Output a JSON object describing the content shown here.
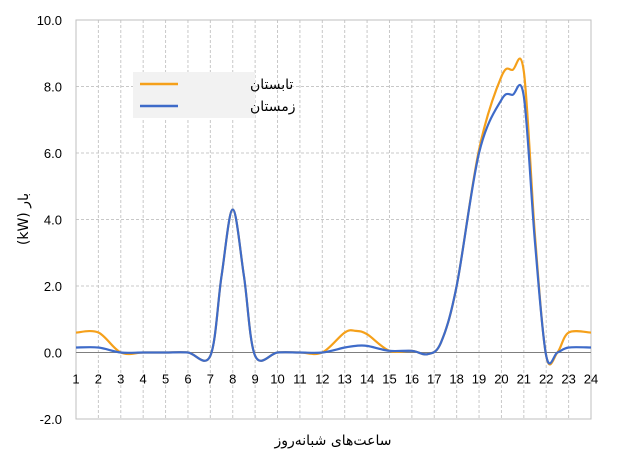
{
  "chart_data": {
    "type": "line",
    "xlabel": "ساعت‌های شبانه‌روز",
    "ylabel": "بار (kW)",
    "x": [
      1,
      2,
      3,
      4,
      5,
      6,
      7,
      8,
      9,
      10,
      11,
      12,
      13,
      14,
      15,
      16,
      17,
      18,
      19,
      20,
      21,
      22,
      23,
      24
    ],
    "xlim": [
      1,
      24
    ],
    "ylim": [
      -2.0,
      10.0
    ],
    "yticks": [
      "-2.0",
      "0.0",
      "2.0",
      "4.0",
      "6.0",
      "8.0",
      "10.0"
    ],
    "grid": true,
    "legend_position": "top-left",
    "series": [
      {
        "name": "تابستان",
        "color": "#F5A01A",
        "x": [
          1,
          2,
          3,
          4,
          5,
          6,
          7,
          7.5,
          8,
          8.5,
          9,
          10,
          11,
          12,
          13,
          13.5,
          14,
          15,
          16,
          16.7,
          17.3,
          18,
          19,
          20,
          20.5,
          21,
          21.5,
          22,
          22.5,
          23,
          24
        ],
        "values": [
          0.6,
          0.6,
          0.0,
          0.0,
          0.0,
          0.0,
          -0.1,
          2.3,
          4.3,
          2.3,
          -0.1,
          0.0,
          0.0,
          0.0,
          0.6,
          0.65,
          0.55,
          0.05,
          0.05,
          -0.05,
          0.3,
          2.0,
          6.1,
          8.3,
          8.5,
          8.45,
          3.5,
          -0.1,
          0.0,
          0.6,
          0.6
        ]
      },
      {
        "name": "زمستان",
        "color": "#3E6BC9",
        "x": [
          1,
          2,
          3,
          4,
          5,
          6,
          7,
          7.5,
          8,
          8.5,
          9,
          10,
          11,
          12,
          13,
          13.5,
          14,
          15,
          16,
          16.7,
          17.3,
          18,
          19,
          20,
          20.5,
          21,
          21.5,
          22,
          22.5,
          23,
          24
        ],
        "values": [
          0.15,
          0.15,
          0.0,
          0.0,
          0.0,
          0.0,
          -0.1,
          2.3,
          4.3,
          2.3,
          -0.1,
          0.0,
          0.0,
          0.0,
          0.15,
          0.2,
          0.2,
          0.05,
          0.05,
          -0.05,
          0.3,
          2.0,
          6.0,
          7.6,
          7.75,
          7.7,
          3.3,
          -0.1,
          0.0,
          0.15,
          0.15
        ]
      }
    ]
  }
}
